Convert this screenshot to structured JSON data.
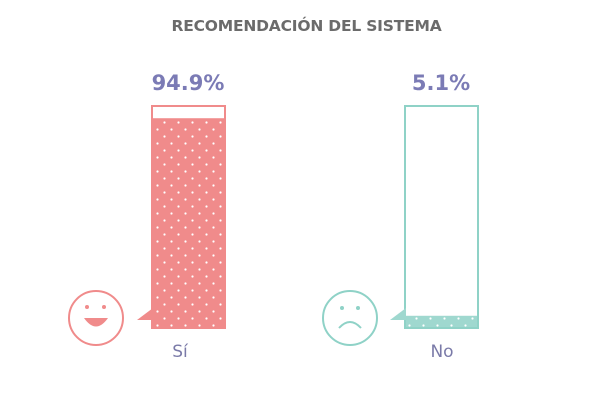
{
  "chart_data": {
    "type": "bar",
    "title": "RECOMENDACIÓN DEL SISTEMA",
    "categories": [
      "Sí",
      "No"
    ],
    "values": [
      94.9,
      5.1
    ],
    "data_labels": [
      "94.9%",
      "5.1%"
    ],
    "unit": "%",
    "ylim": [
      0,
      100
    ],
    "grid": false,
    "legend": "none",
    "colors": {
      "si_fill": "#f08b8b",
      "si_outline": "#f08b8b",
      "no_fill": "#9fd8cf",
      "no_outline": "#8fd2c7",
      "label_color": "#7b7bb5",
      "dots": "#ffffff"
    },
    "icons": [
      "smiley-face-icon",
      "sad-face-icon"
    ]
  }
}
